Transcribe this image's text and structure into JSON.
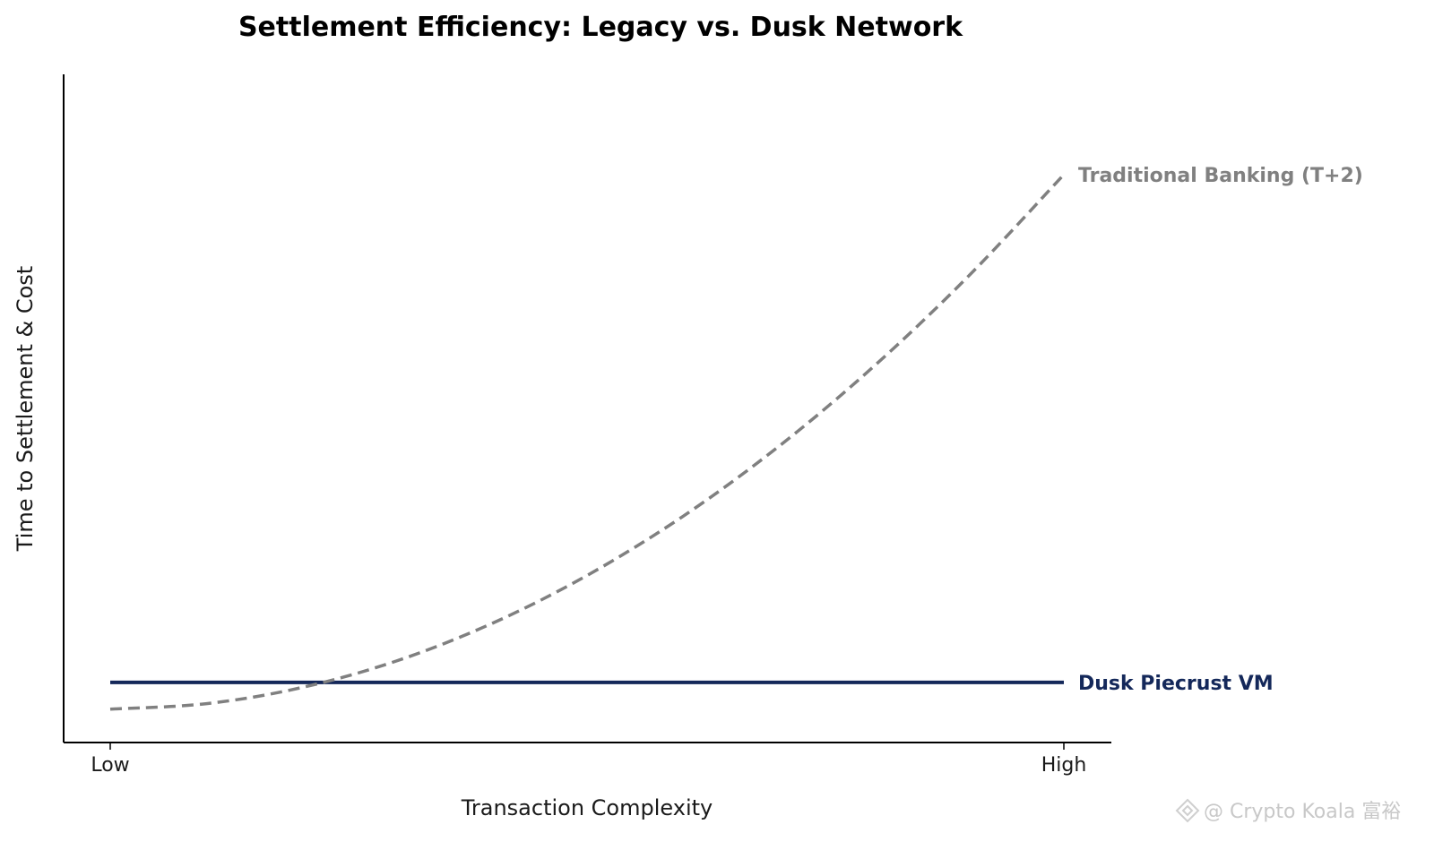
{
  "chart_data": {
    "type": "line",
    "title": "Settlement Efficiency: Legacy vs. Dusk Network",
    "xlabel": "Transaction Complexity",
    "ylabel": "Time to Settlement & Cost",
    "x_tick_labels": [
      "Low",
      "High"
    ],
    "x": [
      0,
      0.1,
      0.2,
      0.3,
      0.4,
      0.5,
      0.6,
      0.7,
      0.8,
      0.9,
      1.0
    ],
    "xlim": [
      0,
      1
    ],
    "ylim": [
      0,
      10
    ],
    "grid": false,
    "series": [
      {
        "name": "Traditional Banking (T+2)",
        "style": "dashed",
        "color": "#808080",
        "values": [
          0.5,
          0.58,
          0.82,
          1.22,
          1.78,
          2.5,
          3.38,
          4.42,
          5.62,
          6.98,
          8.5
        ]
      },
      {
        "name": "Dusk Piecrust VM",
        "style": "solid",
        "color": "#14285a",
        "values": [
          0.9,
          0.9,
          0.9,
          0.9,
          0.9,
          0.9,
          0.9,
          0.9,
          0.9,
          0.9,
          0.9
        ]
      }
    ]
  },
  "watermark": "@ Crypto Koala 富裕"
}
